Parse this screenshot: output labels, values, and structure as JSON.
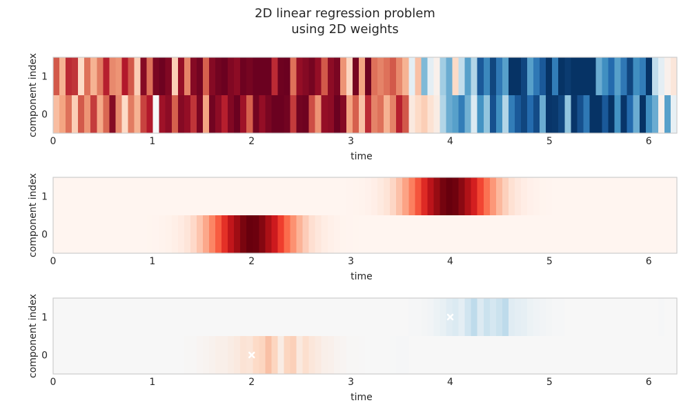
{
  "chart_data": {
    "type": "heatmap",
    "title_lines": [
      "2D linear regression problem",
      "using 2D weights"
    ],
    "colormaps": {
      "RdBu_r_stops": [
        "#053061",
        "#2166ac",
        "#4393c3",
        "#92c5de",
        "#d1e5f0",
        "#f7f7f7",
        "#fddbc7",
        "#f4a582",
        "#d6604d",
        "#b2182b",
        "#67001f"
      ],
      "Reds_stops": [
        "#fff5f0",
        "#fee0d2",
        "#fcbba1",
        "#fc9272",
        "#fb6a4a",
        "#ef3b2c",
        "#cb181d",
        "#a50f15",
        "#67000d"
      ]
    },
    "panels": [
      {
        "xlabel": "time",
        "ylabel": "component index",
        "xlim": [
          0,
          6.2832
        ],
        "xticks": [
          "0",
          "1",
          "2",
          "3",
          "4",
          "5",
          "6"
        ],
        "yticks": [
          "0",
          "1"
        ],
        "colormap": "RdBu_r",
        "vlim": [
          -1,
          1
        ],
        "n_columns": 100,
        "rows": [
          [
            0.31,
            0.4,
            0.55,
            0.25,
            0.62,
            0.45,
            0.7,
            0.38,
            0.58,
            0.92,
            0.48,
            0.2,
            0.52,
            0.35,
            0.68,
            0.8,
            0.0,
            0.85,
            0.9,
            0.6,
            0.92,
            0.88,
            0.72,
            0.95,
            0.4,
            0.97,
            0.9,
            0.78,
            0.93,
            0.99,
            0.85,
            0.6,
            0.97,
            0.88,
            0.95,
            0.99,
            0.99,
            0.97,
            0.7,
            0.97,
            0.98,
            0.65,
            0.45,
            0.88,
            0.9,
            0.99,
            0.92,
            0.4,
            0.6,
            0.3,
            0.75,
            0.5,
            0.55,
            0.35,
            0.5,
            0.78,
            0.62,
            0.1,
            0.2,
            0.25,
            0.15,
            0.08,
            -0.3,
            -0.5,
            -0.55,
            -0.7,
            -0.48,
            -0.15,
            -0.6,
            -0.4,
            -0.88,
            -0.62,
            -0.3,
            -0.7,
            -0.85,
            -0.92,
            -0.78,
            -0.9,
            -0.5,
            -0.98,
            -0.97,
            -0.92,
            -0.4,
            -0.98,
            -0.88,
            -0.72,
            -0.99,
            -0.99,
            -0.85,
            -0.99,
            -0.6,
            -0.98,
            -0.78,
            -0.5,
            -0.99,
            -0.62,
            -0.5,
            0.05,
            -0.55,
            -0.08
          ],
          [
            0.62,
            0.35,
            0.75,
            0.72,
            0.2,
            0.55,
            0.35,
            0.52,
            0.78,
            0.48,
            0.45,
            0.8,
            0.62,
            0.25,
            0.92,
            0.55,
            0.95,
            0.98,
            0.93,
            0.25,
            0.88,
            0.5,
            0.92,
            0.97,
            0.6,
            0.92,
            0.97,
            0.99,
            0.93,
            0.9,
            0.98,
            0.96,
            0.99,
            0.99,
            0.99,
            0.75,
            0.98,
            0.99,
            0.55,
            0.88,
            0.92,
            0.96,
            0.88,
            0.62,
            0.9,
            0.95,
            0.45,
            0.22,
            0.96,
            0.4,
            0.98,
            0.55,
            0.5,
            0.55,
            0.62,
            0.48,
            0.35,
            -0.1,
            0.3,
            -0.45,
            -0.1,
            0.05,
            -0.35,
            -0.5,
            0.2,
            -0.25,
            -0.55,
            -0.3,
            -0.85,
            -0.65,
            -0.92,
            -0.72,
            -0.55,
            -0.99,
            -0.99,
            -0.92,
            -0.55,
            -0.72,
            -0.85,
            -0.99,
            -0.7,
            -0.99,
            -0.96,
            -0.99,
            -0.99,
            -0.99,
            -0.99,
            -0.5,
            -0.62,
            -0.78,
            -0.55,
            -0.72,
            -0.92,
            -0.62,
            -0.7,
            -0.99,
            -0.25,
            -0.1,
            0.05,
            0.12
          ]
        ]
      },
      {
        "xlabel": "time",
        "ylabel": "component index",
        "xlim": [
          0,
          6.2832
        ],
        "xticks": [
          "0",
          "1",
          "2",
          "3",
          "4",
          "5",
          "6"
        ],
        "yticks": [
          "0",
          "1"
        ],
        "colormap": "Reds",
        "vlim": [
          0,
          1
        ],
        "gaussians": [
          {
            "row": 0,
            "center": 2.0,
            "width": 0.3,
            "amplitude": 1.0
          },
          {
            "row": 1,
            "center": 4.0,
            "width": 0.3,
            "amplitude": 1.0
          }
        ],
        "n_columns": 100
      },
      {
        "xlabel": "time",
        "ylabel": "component index",
        "xlim": [
          0,
          6.2832
        ],
        "xticks": [
          "0",
          "1",
          "2",
          "3",
          "4",
          "5",
          "6"
        ],
        "yticks": [
          "0",
          "1"
        ],
        "colormap": "RdBu_r",
        "vlim": [
          -1,
          1
        ],
        "n_columns": 100,
        "rows": [
          [
            0,
            0,
            0,
            0,
            0,
            0,
            0,
            0,
            0,
            0,
            0,
            0,
            0,
            0,
            0,
            0,
            0,
            0,
            0,
            0,
            0,
            0.01,
            0.01,
            0.02,
            0.03,
            0.04,
            0.06,
            0.06,
            0.08,
            0.1,
            0.14,
            0.13,
            0.2,
            0.22,
            0.3,
            0.22,
            0.08,
            0.22,
            0.24,
            0.1,
            0.17,
            0.12,
            0.09,
            0.06,
            0.05,
            0.03,
            0.02,
            0.01,
            0.01,
            0.005,
            0,
            0,
            0,
            0,
            -0.005,
            -0.01,
            -0.01,
            0,
            0,
            0,
            0,
            0,
            0,
            0,
            0,
            0,
            0,
            0,
            0,
            0,
            0,
            0,
            0,
            0,
            0,
            0,
            0,
            0,
            0,
            0,
            0,
            0,
            0,
            0,
            0,
            0,
            0,
            0,
            0,
            0,
            0,
            0,
            0,
            0,
            0,
            0,
            0,
            0,
            0,
            0
          ],
          [
            0,
            0,
            0,
            0,
            0,
            0,
            0,
            0,
            0,
            0,
            0,
            0,
            0,
            0,
            0,
            0,
            0,
            0,
            0,
            0,
            0,
            0,
            0,
            0,
            0,
            0,
            0,
            0,
            0,
            0,
            0,
            0,
            0,
            0,
            0,
            0,
            0,
            0,
            0,
            0,
            0,
            0,
            0,
            0,
            0,
            0,
            0,
            0,
            0,
            0,
            0,
            0,
            0,
            0,
            0,
            0,
            0,
            -0.01,
            -0.01,
            -0.02,
            -0.03,
            -0.06,
            -0.08,
            -0.12,
            -0.15,
            -0.1,
            -0.2,
            -0.26,
            -0.14,
            -0.22,
            -0.18,
            -0.22,
            -0.26,
            -0.12,
            -0.1,
            -0.09,
            -0.06,
            -0.04,
            -0.03,
            -0.02,
            -0.01,
            -0.01,
            0,
            0,
            0,
            0,
            0,
            0,
            0,
            0,
            0,
            0,
            0,
            0,
            0,
            0,
            0,
            -0.01,
            0,
            0
          ]
        ],
        "markers": [
          {
            "x": 2.0,
            "y": 0,
            "symbol": "x",
            "color": "#ffffff"
          },
          {
            "x": 4.0,
            "y": 1,
            "symbol": "x",
            "color": "#ffffff"
          }
        ]
      }
    ]
  }
}
